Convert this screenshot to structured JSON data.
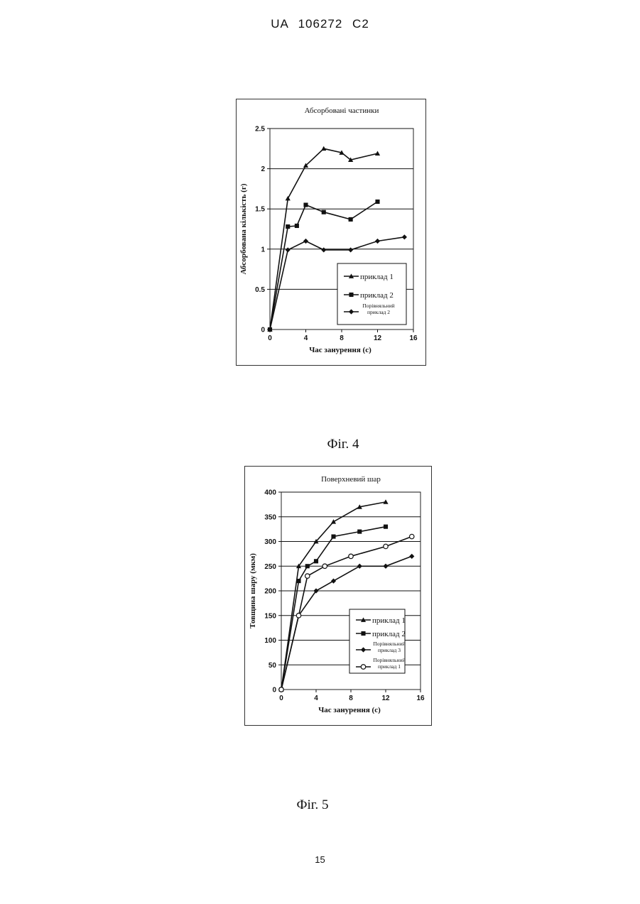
{
  "header": {
    "text": "UA  106272  C2"
  },
  "page_number": "15",
  "figures": [
    {
      "caption": "Фіг. 4"
    },
    {
      "caption": "Фіг. 5"
    }
  ],
  "chart_data": [
    {
      "type": "line",
      "title": "Абсорбовані частинки",
      "xlabel": "Час занурення (с)",
      "ylabel": "Абсорбована кількість (г)",
      "xlim": [
        0,
        16
      ],
      "ylim": [
        0,
        2.5
      ],
      "xticks": [
        0,
        4,
        8,
        12,
        16
      ],
      "yticks": [
        0,
        0.5,
        1,
        1.5,
        2,
        2.5
      ],
      "ytick_labels": [
        "0",
        "0.5",
        "1",
        "1.5",
        "2",
        "2.5"
      ],
      "grid": "horizontal",
      "legend_position": "bottom-right",
      "series": [
        {
          "name": "приклад 1",
          "marker": "triangle",
          "x": [
            0,
            2,
            4,
            6,
            8,
            9,
            12
          ],
          "y": [
            0,
            1.63,
            2.04,
            2.25,
            2.2,
            2.11,
            2.19
          ]
        },
        {
          "name": "приклад 2",
          "marker": "square",
          "x": [
            0,
            2,
            3,
            4,
            6,
            9,
            12
          ],
          "y": [
            0,
            1.28,
            1.29,
            1.55,
            1.46,
            1.37,
            1.59
          ]
        },
        {
          "name": "Порівняльний приклад 2",
          "name_lines": [
            "Порівняльний",
            "приклад 2"
          ],
          "marker": "diamond",
          "x": [
            0,
            2,
            4,
            6,
            9,
            12,
            15
          ],
          "y": [
            0,
            0.99,
            1.1,
            0.99,
            0.99,
            1.1,
            1.15
          ]
        }
      ]
    },
    {
      "type": "line",
      "title": "Поверхневий шар",
      "xlabel": "Час занурення (с)",
      "ylabel": "Товщина шару (мкм)",
      "xlim": [
        0,
        16
      ],
      "ylim": [
        0,
        400
      ],
      "xticks": [
        0,
        4,
        8,
        12,
        16
      ],
      "yticks": [
        0,
        50,
        100,
        150,
        200,
        250,
        300,
        350,
        400
      ],
      "ytick_labels": [
        "0",
        "50",
        "100",
        "150",
        "200",
        "250",
        "300",
        "350",
        "400"
      ],
      "grid": "horizontal",
      "legend_position": "bottom-right",
      "series": [
        {
          "name": "приклад 1",
          "marker": "triangle",
          "x": [
            0,
            2,
            4,
            6,
            9,
            12
          ],
          "y": [
            0,
            250,
            300,
            340,
            370,
            380
          ]
        },
        {
          "name": "приклад 2",
          "marker": "square",
          "x": [
            0,
            2,
            3,
            4,
            6,
            9,
            12
          ],
          "y": [
            0,
            220,
            250,
            260,
            310,
            320,
            330
          ]
        },
        {
          "name": "Порівняльний приклад 3",
          "name_lines": [
            "Порівняльний",
            "приклад 3"
          ],
          "marker": "diamond",
          "x": [
            0,
            2,
            4,
            6,
            9,
            12,
            15
          ],
          "y": [
            0,
            150,
            200,
            220,
            250,
            250,
            270
          ]
        },
        {
          "name": "Порівняльний приклад 1",
          "name_lines": [
            "Порівняльний",
            "приклад 1"
          ],
          "marker": "open-circle",
          "x": [
            0,
            2,
            3,
            5,
            8,
            12,
            15
          ],
          "y": [
            0,
            150,
            230,
            250,
            270,
            290,
            310
          ]
        }
      ]
    }
  ]
}
